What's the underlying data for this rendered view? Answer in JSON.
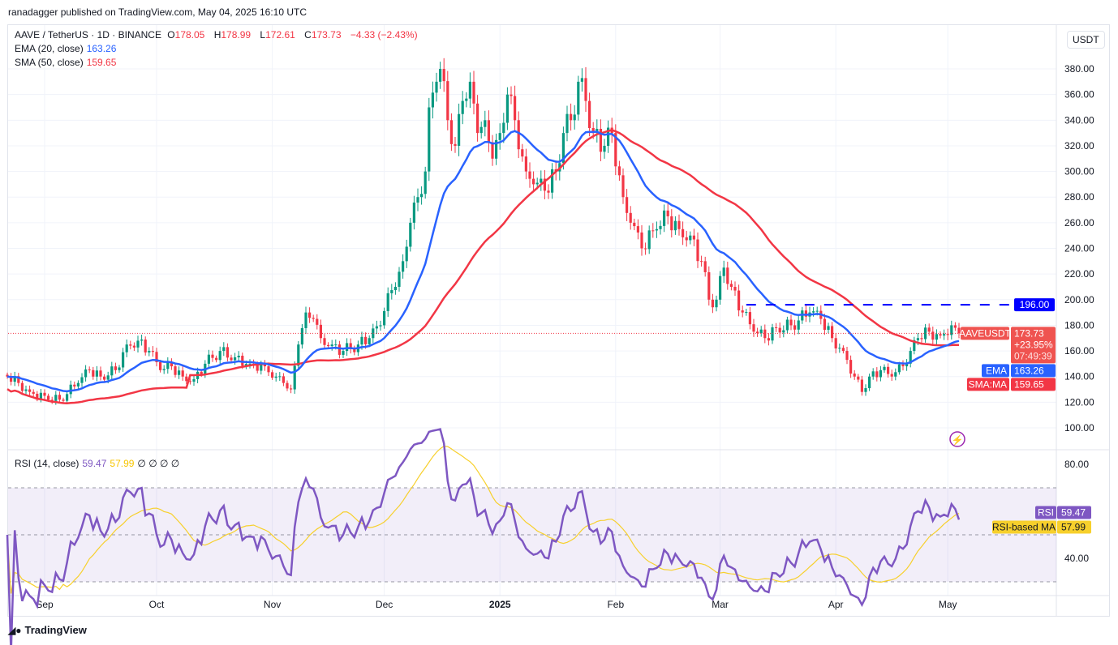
{
  "published": "ranadagger published on TradingView.com, May 04, 2025 16:10 UTC",
  "symbol": {
    "name": "AAVE / TetherUS · 1D · BINANCE",
    "open_label": "O",
    "open": "178.05",
    "high_label": "H",
    "high": "178.99",
    "low_label": "L",
    "low": "172.61",
    "close_label": "C",
    "close": "173.73",
    "change": "−4.33 (−2.43%)"
  },
  "ema": {
    "label": "EMA (20, close)",
    "value": "163.26",
    "tag": "EMA"
  },
  "sma": {
    "label": "SMA (50, close)",
    "value": "159.65",
    "tag": "SMA:MA"
  },
  "rsi": {
    "label": "RSI (14, close)",
    "value": "59.47",
    "ma_value": "57.99",
    "extras": "∅ ∅ ∅ ∅",
    "tag": "RSI",
    "ma_tag": "RSI-based MA"
  },
  "price_axis": {
    "currency": "USDT",
    "ticks": [
      "380.00",
      "360.00",
      "340.00",
      "320.00",
      "300.00",
      "280.00",
      "260.00",
      "240.00",
      "220.00",
      "200.00",
      "180.00",
      "160.00",
      "140.00",
      "120.00",
      "100.00"
    ]
  },
  "rsi_axis": {
    "ticks": [
      "80.00",
      "40.00"
    ]
  },
  "price_tag": {
    "symbol": "AAVEUSDT",
    "price": "173.73",
    "pct": "+23.95%",
    "countdown": "07:49:39"
  },
  "level_line": {
    "value": 196,
    "label": "196.00",
    "color": "#0000ff"
  },
  "time_axis": [
    {
      "label": "Sep",
      "date": "2024-09-01"
    },
    {
      "label": "Oct",
      "date": "2024-10-01"
    },
    {
      "label": "Nov",
      "date": "2024-11-01"
    },
    {
      "label": "Dec",
      "date": "2024-12-01"
    },
    {
      "label": "2025",
      "date": "2025-01-01"
    },
    {
      "label": "Feb",
      "date": "2025-02-01"
    },
    {
      "label": "Mar",
      "date": "2025-03-01"
    },
    {
      "label": "Apr",
      "date": "2025-04-01"
    },
    {
      "label": "May",
      "date": "2025-05-01"
    }
  ],
  "footer": {
    "brand": "TradingView"
  },
  "colors": {
    "up": "#089981",
    "down": "#f23645",
    "ema": "#2962ff",
    "sma": "#f23645",
    "rsi": "#7e57c2",
    "rsi_ma": "#f7d02c"
  },
  "chart_data": {
    "type": "candlestick",
    "interval": "1D",
    "ylim": [
      90,
      400
    ],
    "rsi_ylim": [
      20,
      90
    ],
    "rsi_bands": [
      30,
      70
    ],
    "close_keypoints": [
      [
        "2024-08-22",
        140
      ],
      [
        "2024-08-25",
        135
      ],
      [
        "2024-08-28",
        128
      ],
      [
        "2024-09-01",
        125
      ],
      [
        "2024-09-05",
        122
      ],
      [
        "2024-09-10",
        135
      ],
      [
        "2024-09-13",
        145
      ],
      [
        "2024-09-16",
        140
      ],
      [
        "2024-09-20",
        145
      ],
      [
        "2024-09-23",
        165
      ],
      [
        "2024-09-26",
        168
      ],
      [
        "2024-09-29",
        160
      ],
      [
        "2024-10-02",
        145
      ],
      [
        "2024-10-05",
        148
      ],
      [
        "2024-10-08",
        140
      ],
      [
        "2024-10-11",
        138
      ],
      [
        "2024-10-14",
        150
      ],
      [
        "2024-10-18",
        160
      ],
      [
        "2024-10-22",
        155
      ],
      [
        "2024-10-26",
        150
      ],
      [
        "2024-10-30",
        148
      ],
      [
        "2024-11-02",
        140
      ],
      [
        "2024-11-04",
        135
      ],
      [
        "2024-11-06",
        130
      ],
      [
        "2024-11-08",
        165
      ],
      [
        "2024-11-10",
        190
      ],
      [
        "2024-11-12",
        185
      ],
      [
        "2024-11-14",
        170
      ],
      [
        "2024-11-17",
        165
      ],
      [
        "2024-11-20",
        160
      ],
      [
        "2024-11-24",
        165
      ],
      [
        "2024-11-27",
        170
      ],
      [
        "2024-11-30",
        180
      ],
      [
        "2024-12-02",
        205
      ],
      [
        "2024-12-04",
        210
      ],
      [
        "2024-12-06",
        230
      ],
      [
        "2024-12-08",
        260
      ],
      [
        "2024-12-10",
        280
      ],
      [
        "2024-12-12",
        300
      ],
      [
        "2024-12-13",
        350
      ],
      [
        "2024-12-15",
        370
      ],
      [
        "2024-12-16",
        380
      ],
      [
        "2024-12-18",
        340
      ],
      [
        "2024-12-20",
        320
      ],
      [
        "2024-12-22",
        355
      ],
      [
        "2024-12-24",
        370
      ],
      [
        "2024-12-26",
        330
      ],
      [
        "2024-12-28",
        340
      ],
      [
        "2024-12-30",
        310
      ],
      [
        "2025-01-01",
        330
      ],
      [
        "2025-01-03",
        360
      ],
      [
        "2025-01-05",
        340
      ],
      [
        "2025-01-08",
        300
      ],
      [
        "2025-01-10",
        290
      ],
      [
        "2025-01-13",
        285
      ],
      [
        "2025-01-16",
        300
      ],
      [
        "2025-01-18",
        330
      ],
      [
        "2025-01-20",
        340
      ],
      [
        "2025-01-22",
        370
      ],
      [
        "2025-01-24",
        355
      ],
      [
        "2025-01-26",
        330
      ],
      [
        "2025-01-29",
        320
      ],
      [
        "2025-01-31",
        330
      ],
      [
        "2025-02-03",
        280
      ],
      [
        "2025-02-05",
        260
      ],
      [
        "2025-02-08",
        240
      ],
      [
        "2025-02-12",
        255
      ],
      [
        "2025-02-15",
        265
      ],
      [
        "2025-02-18",
        255
      ],
      [
        "2025-02-21",
        250
      ],
      [
        "2025-02-24",
        230
      ],
      [
        "2025-02-26",
        200
      ],
      [
        "2025-02-28",
        200
      ],
      [
        "2025-03-02",
        225
      ],
      [
        "2025-03-04",
        210
      ],
      [
        "2025-03-07",
        190
      ],
      [
        "2025-03-10",
        175
      ],
      [
        "2025-03-13",
        170
      ],
      [
        "2025-03-16",
        178
      ],
      [
        "2025-03-20",
        180
      ],
      [
        "2025-03-25",
        190
      ],
      [
        "2025-03-28",
        185
      ],
      [
        "2025-03-31",
        170
      ],
      [
        "2025-04-03",
        160
      ],
      [
        "2025-04-06",
        140
      ],
      [
        "2025-04-08",
        128
      ],
      [
        "2025-04-10",
        140
      ],
      [
        "2025-04-13",
        145
      ],
      [
        "2025-04-16",
        140
      ],
      [
        "2025-04-19",
        148
      ],
      [
        "2025-04-21",
        160
      ],
      [
        "2025-04-23",
        170
      ],
      [
        "2025-04-26",
        175
      ],
      [
        "2025-04-29",
        172
      ],
      [
        "2025-05-02",
        180
      ],
      [
        "2025-05-03",
        178.05
      ],
      [
        "2025-05-04",
        173.73
      ]
    ]
  }
}
